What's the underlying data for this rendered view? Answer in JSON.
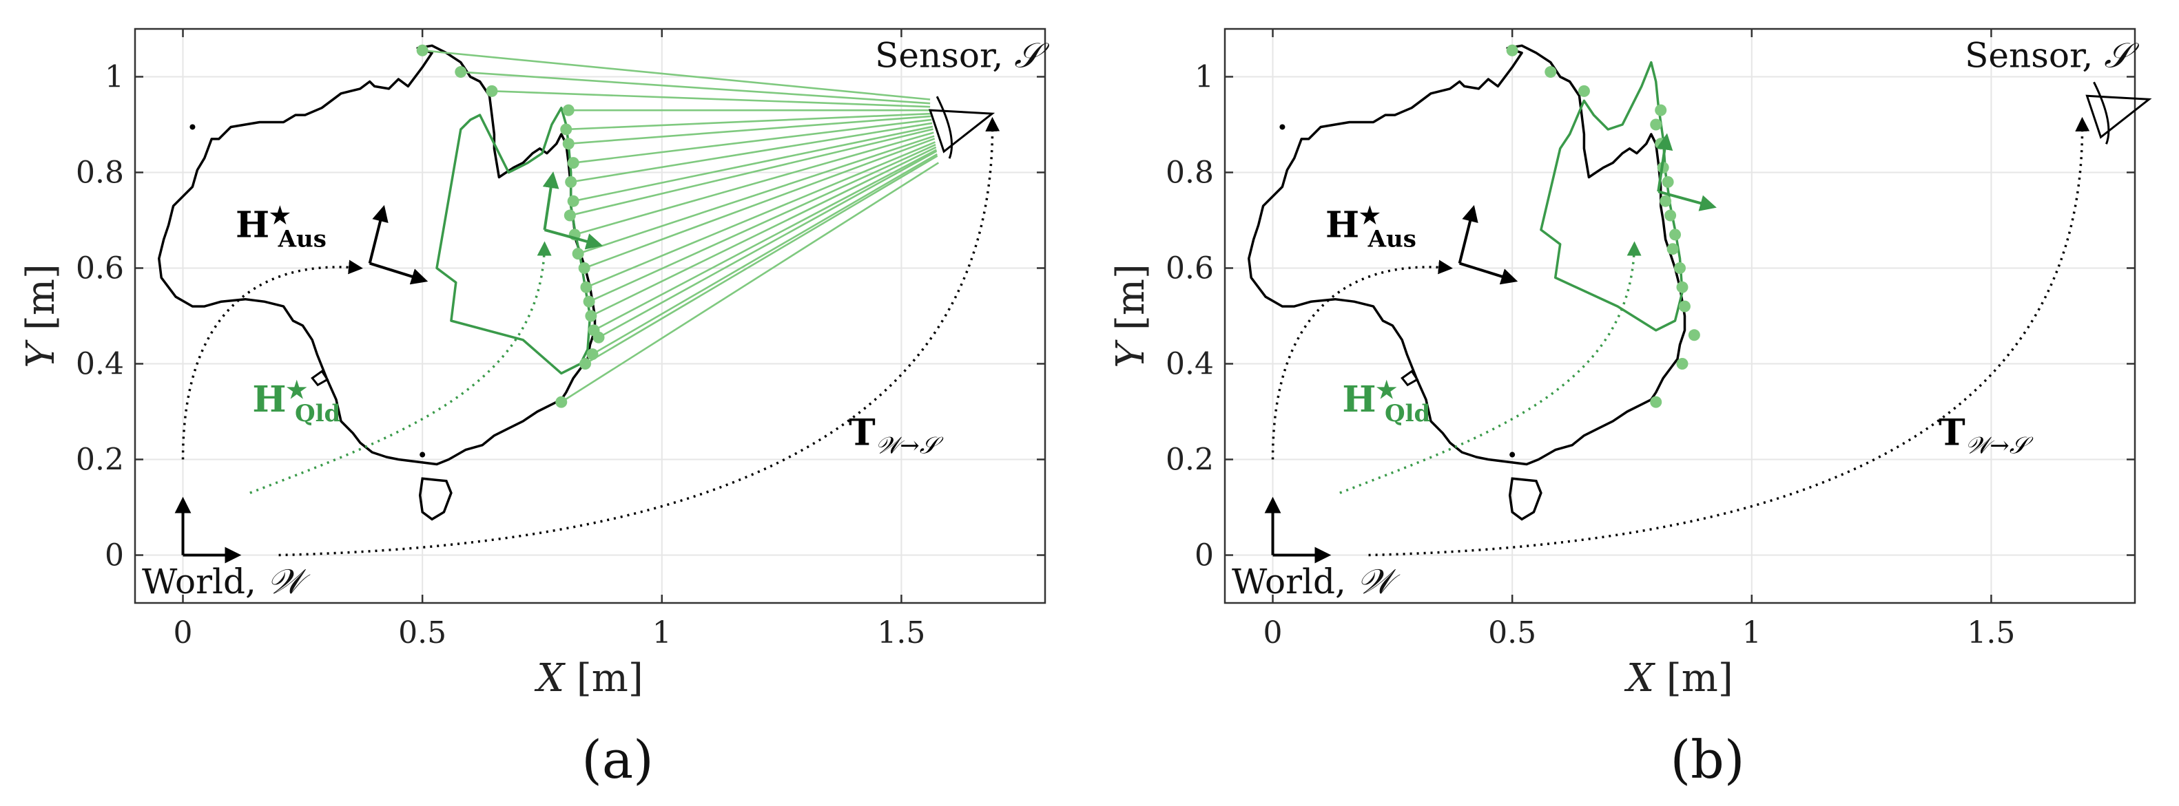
{
  "chart_data": [
    {
      "type": "scatter",
      "panel_label": "(a)",
      "xlabel": "X",
      "ylabel": "Y",
      "unit": "[m]",
      "xlim": [
        -0.1,
        1.8
      ],
      "ylim": [
        -0.1,
        1.1
      ],
      "xticks": [
        0,
        0.5,
        1,
        1.5
      ],
      "xtick_labels": [
        "0",
        "0.5",
        "1",
        "1.5"
      ],
      "yticks": [
        0,
        0.2,
        0.4,
        0.6,
        0.8,
        1
      ],
      "ytick_labels": [
        "0",
        "0.2",
        "0.4",
        "0.6",
        "0.8",
        "1"
      ],
      "grid": true,
      "annotations": {
        "sensor_text": "Sensor,",
        "sensor_symbol": "𝒮",
        "world_text": "World,",
        "world_symbol": "𝒲",
        "h_aus_main": "H",
        "h_aus_sup": "★",
        "h_aus_sub": "Aus",
        "h_qld_main": "H",
        "h_qld_sup": "★",
        "h_qld_sub": "Qld",
        "transform_main": "T",
        "transform_sub": "𝒲→𝒮"
      },
      "sensor_origin": [
        1.56,
        0.93
      ],
      "measured_points": [
        [
          0.5,
          1.055
        ],
        [
          0.58,
          1.01
        ],
        [
          0.645,
          0.97
        ],
        [
          0.805,
          0.93
        ],
        [
          0.8,
          0.89
        ],
        [
          0.805,
          0.86
        ],
        [
          0.815,
          0.82
        ],
        [
          0.81,
          0.78
        ],
        [
          0.815,
          0.74
        ],
        [
          0.808,
          0.71
        ],
        [
          0.818,
          0.67
        ],
        [
          0.825,
          0.63
        ],
        [
          0.838,
          0.6
        ],
        [
          0.842,
          0.56
        ],
        [
          0.848,
          0.53
        ],
        [
          0.852,
          0.5
        ],
        [
          0.858,
          0.47
        ],
        [
          0.868,
          0.455
        ],
        [
          0.855,
          0.42
        ],
        [
          0.84,
          0.4
        ],
        [
          0.79,
          0.32
        ]
      ],
      "colors": {
        "green": "#3a9a4a",
        "light_green": "#7fc97f",
        "black": "#000000"
      }
    },
    {
      "type": "scatter",
      "panel_label": "(b)",
      "xlabel": "X",
      "ylabel": "Y",
      "unit": "[m]",
      "xlim": [
        -0.1,
        1.8
      ],
      "ylim": [
        -0.1,
        1.1
      ],
      "xticks": [
        0,
        0.5,
        1,
        1.5
      ],
      "xtick_labels": [
        "0",
        "0.5",
        "1",
        "1.5"
      ],
      "yticks": [
        0,
        0.2,
        0.4,
        0.6,
        0.8,
        1
      ],
      "ytick_labels": [
        "0",
        "0.2",
        "0.4",
        "0.6",
        "0.8",
        "1"
      ],
      "grid": true,
      "annotations": {
        "sensor_text": "Sensor,",
        "sensor_symbol": "𝒮",
        "world_text": "World,",
        "world_symbol": "𝒲",
        "h_aus_main": "H",
        "h_aus_sup": "★",
        "h_aus_sub": "Aus",
        "h_qld_main": "H",
        "h_qld_sup": "★",
        "h_qld_sub": "Qld",
        "transform_main": "T",
        "transform_sub": "𝒲→𝒮"
      },
      "sensor_origin": [
        1.7,
        0.96
      ],
      "measured_points": [
        [
          0.5,
          1.055
        ],
        [
          0.58,
          1.01
        ],
        [
          0.65,
          0.97
        ],
        [
          0.81,
          0.93
        ],
        [
          0.8,
          0.9
        ],
        [
          0.81,
          0.86
        ],
        [
          0.815,
          0.81
        ],
        [
          0.825,
          0.78
        ],
        [
          0.82,
          0.74
        ],
        [
          0.83,
          0.71
        ],
        [
          0.84,
          0.67
        ],
        [
          0.835,
          0.64
        ],
        [
          0.85,
          0.6
        ],
        [
          0.855,
          0.56
        ],
        [
          0.86,
          0.52
        ],
        [
          0.88,
          0.46
        ],
        [
          0.855,
          0.4
        ],
        [
          0.8,
          0.32
        ]
      ],
      "colors": {
        "green": "#3a9a4a",
        "light_green": "#7fc97f",
        "black": "#000000"
      }
    }
  ]
}
